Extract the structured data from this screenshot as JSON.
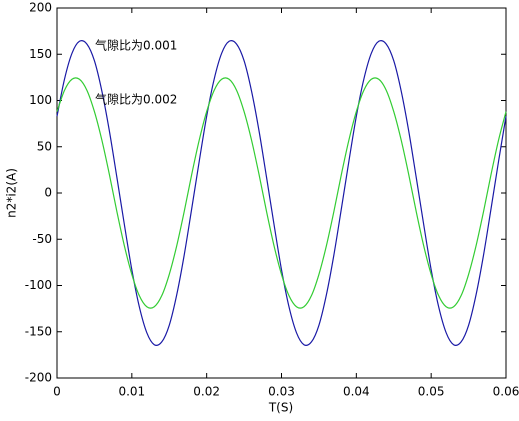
{
  "chart_data": {
    "type": "line",
    "xlabel": "T(S)",
    "ylabel": "n2*i2(A)",
    "x": [
      0,
      0.001,
      0.002,
      0.003,
      0.004,
      0.005,
      0.006,
      0.007,
      0.008,
      0.009,
      0.01,
      0.011,
      0.012,
      0.013,
      0.014,
      0.015,
      0.016,
      0.017,
      0.018,
      0.019,
      0.02,
      0.021,
      0.022,
      0.023,
      0.024,
      0.025,
      0.026,
      0.027,
      0.028,
      0.029,
      0.03,
      0.031,
      0.032,
      0.033,
      0.034,
      0.035,
      0.036,
      0.037,
      0.038,
      0.039,
      0.04,
      0.041,
      0.042,
      0.043,
      0.044,
      0.045,
      0.046,
      0.047,
      0.048,
      0.049,
      0.05,
      0.051,
      0.052,
      0.053,
      0.054,
      0.055,
      0.056,
      0.057,
      0.058,
      0.059,
      0.06
    ],
    "series": [
      {
        "name": "气隙比为0.001",
        "color": "#1a1aa6",
        "values": [
          83,
          123,
          151,
          164,
          161,
          143,
          110,
          67,
          17,
          -34,
          -83,
          -123,
          -151,
          -164,
          -161,
          -143,
          -110,
          -67,
          -17,
          34,
          83,
          123,
          151,
          164,
          161,
          143,
          110,
          67,
          17,
          -34,
          -83,
          -123,
          -151,
          -164,
          -161,
          -143,
          -110,
          -67,
          -17,
          34,
          83,
          123,
          151,
          164,
          161,
          143,
          110,
          67,
          17,
          -34,
          -83,
          -123,
          -151,
          -164,
          -161,
          -143,
          -110,
          -67,
          -17,
          34,
          83
        ]
      },
      {
        "name": "气隙比为0.002",
        "color": "#33cc33",
        "values": [
          88,
          111,
          123,
          123,
          111,
          88,
          57,
          20,
          -20,
          -57,
          -88,
          -111,
          -123,
          -123,
          -111,
          -88,
          -57,
          -20,
          20,
          57,
          88,
          111,
          123,
          123,
          111,
          88,
          57,
          20,
          -20,
          -57,
          -88,
          -111,
          -123,
          -123,
          -111,
          -88,
          -57,
          -20,
          20,
          57,
          88,
          111,
          123,
          123,
          111,
          88,
          57,
          20,
          -20,
          -57,
          -88,
          -111,
          -123,
          -123,
          -111,
          -88,
          -57,
          -20,
          20,
          57,
          88
        ]
      }
    ],
    "xlim": [
      0,
      0.06
    ],
    "xticks": [
      0,
      0.01,
      0.02,
      0.03,
      0.04,
      0.05,
      0.06
    ],
    "ylim": [
      -200,
      200
    ],
    "yticks": [
      -200,
      -150,
      -100,
      -50,
      0,
      50,
      100,
      150,
      200
    ]
  }
}
